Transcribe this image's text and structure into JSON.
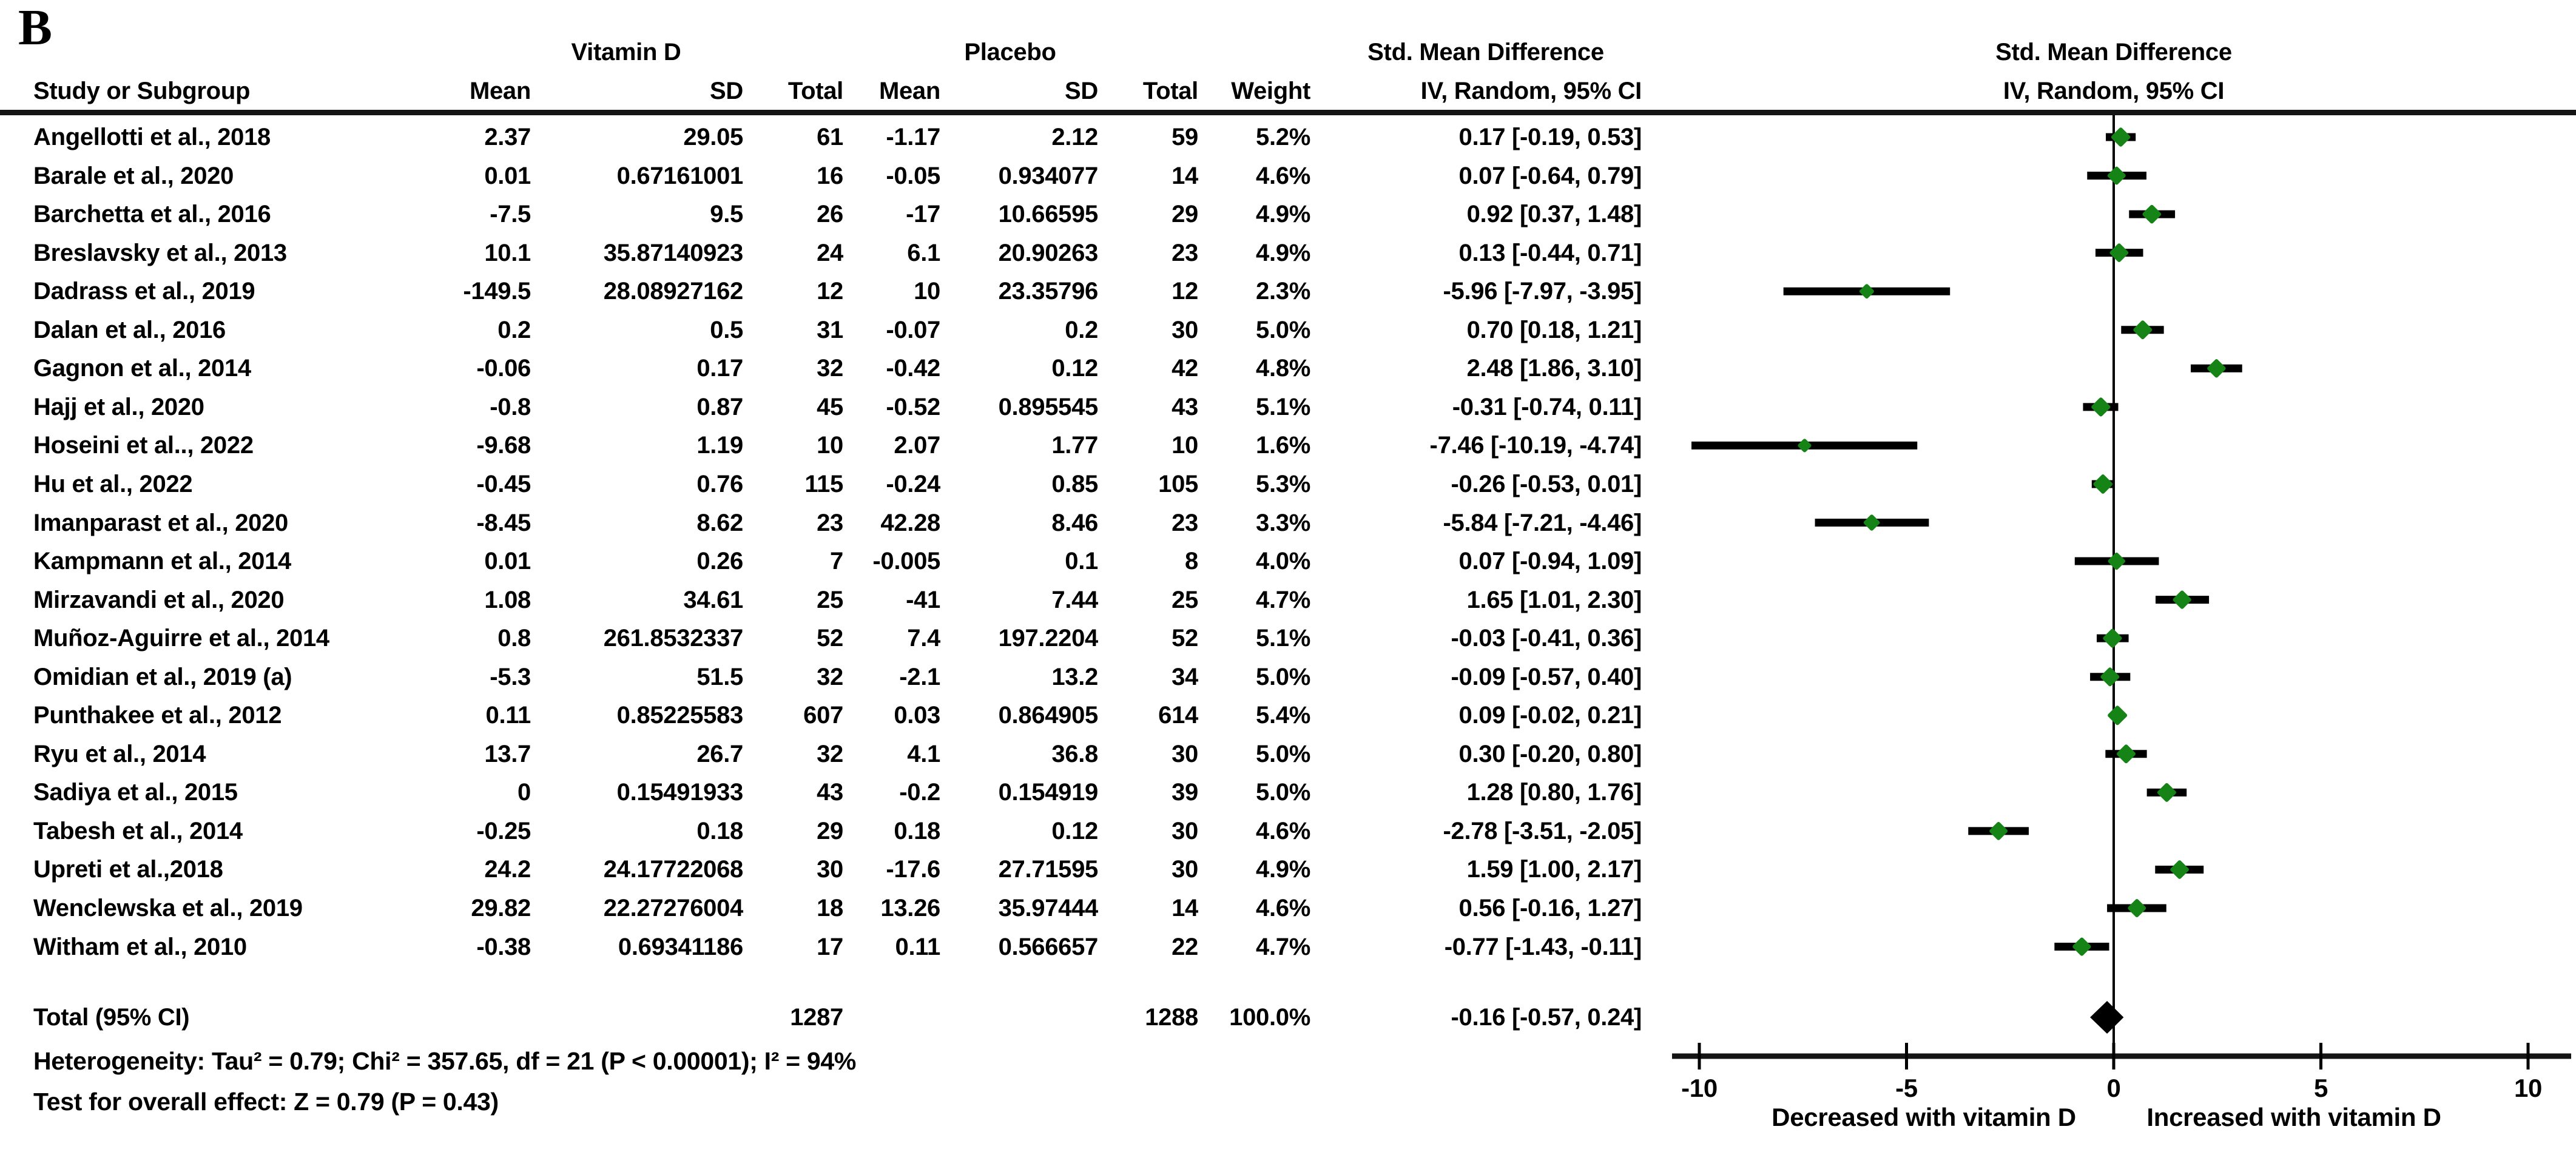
{
  "panel_label": "B",
  "table_header": {
    "study": "Study or Subgroup",
    "group1": "Vitamin D",
    "group2": "Placebo",
    "mean1": "Mean",
    "sd1": "SD",
    "total1": "Total",
    "mean2": "Mean",
    "sd2": "SD",
    "total2": "Total",
    "weight": "Weight",
    "ci_text_col_title": "Std. Mean Difference",
    "ci_text_col_sub": "IV, Random, 95% CI",
    "plot_col_title": "Std. Mean Difference",
    "plot_col_sub": "IV, Random, 95% CI"
  },
  "footer": {
    "heterogeneity": "Heterogeneity: Tau² = 0.79; Chi² = 357.65, df = 21 (P < 0.00001); I² = 94%",
    "overall": "Test for overall effect: Z = 0.79 (P = 0.43)"
  },
  "colors": {
    "marker_green": "#168316",
    "ink": "#000000"
  },
  "chart_data": {
    "type": "scatter",
    "subtype": "forest-plot",
    "title": "Std. Mean Difference",
    "model": "IV, Random, 95% CI",
    "xlim": [
      -10,
      10
    ],
    "xticks": [
      -10,
      -5,
      0,
      5,
      10
    ],
    "x_axis_label_left": "Decreased with vitamin D",
    "x_axis_label_right": "Increased with vitamin D",
    "grid": false,
    "studies": [
      {
        "name": "Angellotti et al., 2018",
        "mean1": "2.37",
        "sd1": "29.05",
        "total1": "61",
        "mean2": "-1.17",
        "sd2": "2.12",
        "total2": "59",
        "weight": "5.2%",
        "weight_num": 5.2,
        "ci": "0.17 [-0.19, 0.53]",
        "est": 0.17,
        "lo": -0.19,
        "hi": 0.53
      },
      {
        "name": "Barale et al., 2020",
        "mean1": "0.01",
        "sd1": "0.67161001",
        "total1": "16",
        "mean2": "-0.05",
        "sd2": "0.934077",
        "total2": "14",
        "weight": "4.6%",
        "weight_num": 4.6,
        "ci": "0.07 [-0.64, 0.79]",
        "est": 0.07,
        "lo": -0.64,
        "hi": 0.79
      },
      {
        "name": "Barchetta et al., 2016",
        "mean1": "-7.5",
        "sd1": "9.5",
        "total1": "26",
        "mean2": "-17",
        "sd2": "10.66595",
        "total2": "29",
        "weight": "4.9%",
        "weight_num": 4.9,
        "ci": "0.92 [0.37, 1.48]",
        "est": 0.92,
        "lo": 0.37,
        "hi": 1.48
      },
      {
        "name": "Breslavsky et al., 2013",
        "mean1": "10.1",
        "sd1": "35.87140923",
        "total1": "24",
        "mean2": "6.1",
        "sd2": "20.90263",
        "total2": "23",
        "weight": "4.9%",
        "weight_num": 4.9,
        "ci": "0.13 [-0.44, 0.71]",
        "est": 0.13,
        "lo": -0.44,
        "hi": 0.71
      },
      {
        "name": "Dadrass et al., 2019",
        "mean1": "-149.5",
        "sd1": "28.08927162",
        "total1": "12",
        "mean2": "10",
        "sd2": "23.35796",
        "total2": "12",
        "weight": "2.3%",
        "weight_num": 2.3,
        "ci": "-5.96 [-7.97, -3.95]",
        "est": -5.96,
        "lo": -7.97,
        "hi": -3.95
      },
      {
        "name": "Dalan et al., 2016",
        "mean1": "0.2",
        "sd1": "0.5",
        "total1": "31",
        "mean2": "-0.07",
        "sd2": "0.2",
        "total2": "30",
        "weight": "5.0%",
        "weight_num": 5.0,
        "ci": "0.70 [0.18, 1.21]",
        "est": 0.7,
        "lo": 0.18,
        "hi": 1.21
      },
      {
        "name": "Gagnon et al., 2014",
        "mean1": "-0.06",
        "sd1": "0.17",
        "total1": "32",
        "mean2": "-0.42",
        "sd2": "0.12",
        "total2": "42",
        "weight": "4.8%",
        "weight_num": 4.8,
        "ci": "2.48 [1.86, 3.10]",
        "est": 2.48,
        "lo": 1.86,
        "hi": 3.1
      },
      {
        "name": "Hajj et al., 2020",
        "mean1": "-0.8",
        "sd1": "0.87",
        "total1": "45",
        "mean2": "-0.52",
        "sd2": "0.895545",
        "total2": "43",
        "weight": "5.1%",
        "weight_num": 5.1,
        "ci": "-0.31 [-0.74, 0.11]",
        "est": -0.31,
        "lo": -0.74,
        "hi": 0.11
      },
      {
        "name": "Hoseini et al.., 2022",
        "mean1": "-9.68",
        "sd1": "1.19",
        "total1": "10",
        "mean2": "2.07",
        "sd2": "1.77",
        "total2": "10",
        "weight": "1.6%",
        "weight_num": 1.6,
        "ci": "-7.46 [-10.19, -4.74]",
        "est": -7.46,
        "lo": -10.19,
        "hi": -4.74
      },
      {
        "name": "Hu et al., 2022",
        "mean1": "-0.45",
        "sd1": "0.76",
        "total1": "115",
        "mean2": "-0.24",
        "sd2": "0.85",
        "total2": "105",
        "weight": "5.3%",
        "weight_num": 5.3,
        "ci": "-0.26 [-0.53, 0.01]",
        "est": -0.26,
        "lo": -0.53,
        "hi": 0.01
      },
      {
        "name": "Imanparast et al., 2020",
        "mean1": "-8.45",
        "sd1": "8.62",
        "total1": "23",
        "mean2": "42.28",
        "sd2": "8.46",
        "total2": "23",
        "weight": "3.3%",
        "weight_num": 3.3,
        "ci": "-5.84 [-7.21, -4.46]",
        "est": -5.84,
        "lo": -7.21,
        "hi": -4.46
      },
      {
        "name": "Kampmann et al., 2014",
        "mean1": "0.01",
        "sd1": "0.26",
        "total1": "7",
        "mean2": "-0.005",
        "sd2": "0.1",
        "total2": "8",
        "weight": "4.0%",
        "weight_num": 4.0,
        "ci": "0.07 [-0.94, 1.09]",
        "est": 0.07,
        "lo": -0.94,
        "hi": 1.09
      },
      {
        "name": "Mirzavandi et al., 2020",
        "mean1": "1.08",
        "sd1": "34.61",
        "total1": "25",
        "mean2": "-41",
        "sd2": "7.44",
        "total2": "25",
        "weight": "4.7%",
        "weight_num": 4.7,
        "ci": "1.65 [1.01, 2.30]",
        "est": 1.65,
        "lo": 1.01,
        "hi": 2.3
      },
      {
        "name": "Muñoz-Aguirre et al., 2014",
        "mean1": "0.8",
        "sd1": "261.8532337",
        "total1": "52",
        "mean2": "7.4",
        "sd2": "197.2204",
        "total2": "52",
        "weight": "5.1%",
        "weight_num": 5.1,
        "ci": "-0.03 [-0.41, 0.36]",
        "est": -0.03,
        "lo": -0.41,
        "hi": 0.36
      },
      {
        "name": "Omidian et al., 2019 (a)",
        "mean1": "-5.3",
        "sd1": "51.5",
        "total1": "32",
        "mean2": "-2.1",
        "sd2": "13.2",
        "total2": "34",
        "weight": "5.0%",
        "weight_num": 5.0,
        "ci": "-0.09 [-0.57, 0.40]",
        "est": -0.09,
        "lo": -0.57,
        "hi": 0.4
      },
      {
        "name": "Punthakee et al., 2012",
        "mean1": "0.11",
        "sd1": "0.85225583",
        "total1": "607",
        "mean2": "0.03",
        "sd2": "0.864905",
        "total2": "614",
        "weight": "5.4%",
        "weight_num": 5.4,
        "ci": "0.09 [-0.02, 0.21]",
        "est": 0.09,
        "lo": -0.02,
        "hi": 0.21
      },
      {
        "name": "Ryu et al., 2014",
        "mean1": "13.7",
        "sd1": "26.7",
        "total1": "32",
        "mean2": "4.1",
        "sd2": "36.8",
        "total2": "30",
        "weight": "5.0%",
        "weight_num": 5.0,
        "ci": "0.30 [-0.20, 0.80]",
        "est": 0.3,
        "lo": -0.2,
        "hi": 0.8
      },
      {
        "name": "Sadiya et al., 2015",
        "mean1": "0",
        "sd1": "0.15491933",
        "total1": "43",
        "mean2": "-0.2",
        "sd2": "0.154919",
        "total2": "39",
        "weight": "5.0%",
        "weight_num": 5.0,
        "ci": "1.28 [0.80, 1.76]",
        "est": 1.28,
        "lo": 0.8,
        "hi": 1.76
      },
      {
        "name": "Tabesh et al., 2014",
        "mean1": "-0.25",
        "sd1": "0.18",
        "total1": "29",
        "mean2": "0.18",
        "sd2": "0.12",
        "total2": "30",
        "weight": "4.6%",
        "weight_num": 4.6,
        "ci": "-2.78 [-3.51, -2.05]",
        "est": -2.78,
        "lo": -3.51,
        "hi": -2.05
      },
      {
        "name": "Upreti et al.,2018",
        "mean1": "24.2",
        "sd1": "24.17722068",
        "total1": "30",
        "mean2": "-17.6",
        "sd2": "27.71595",
        "total2": "30",
        "weight": "4.9%",
        "weight_num": 4.9,
        "ci": "1.59 [1.00, 2.17]",
        "est": 1.59,
        "lo": 1.0,
        "hi": 2.17
      },
      {
        "name": "Wenclewska et al., 2019",
        "mean1": "29.82",
        "sd1": "22.27276004",
        "total1": "18",
        "mean2": "13.26",
        "sd2": "35.97444",
        "total2": "14",
        "weight": "4.6%",
        "weight_num": 4.6,
        "ci": "0.56 [-0.16, 1.27]",
        "est": 0.56,
        "lo": -0.16,
        "hi": 1.27
      },
      {
        "name": "Witham et al., 2010",
        "mean1": "-0.38",
        "sd1": "0.69341186",
        "total1": "17",
        "mean2": "0.11",
        "sd2": "0.566657",
        "total2": "22",
        "weight": "4.7%",
        "weight_num": 4.7,
        "ci": "-0.77 [-1.43, -0.11]",
        "est": -0.77,
        "lo": -1.43,
        "hi": -0.11
      }
    ],
    "summary": {
      "label": "Total (95% CI)",
      "total1": "1287",
      "total2": "1288",
      "weight": "100.0%",
      "ci": "-0.16 [-0.57, 0.24]",
      "est": -0.16,
      "lo": -0.57,
      "hi": 0.24
    }
  }
}
